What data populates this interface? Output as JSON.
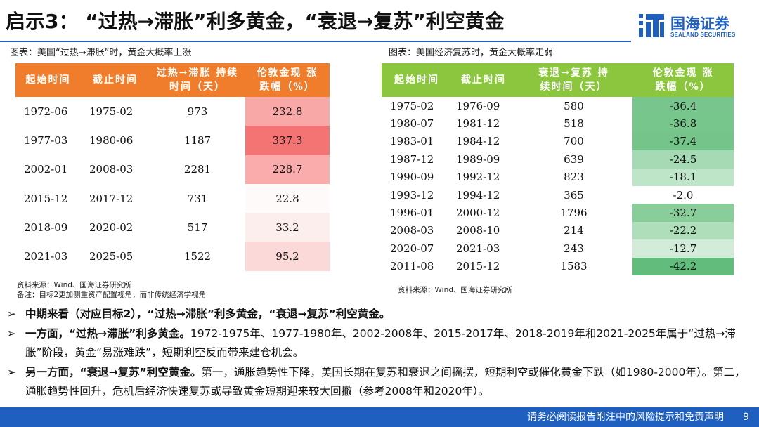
{
  "title": "启示3：  “过热→滞胀”利多黄金，“衰退→复苏”利空黄金",
  "logo": {
    "cn": "国海证券",
    "en": "SEALAND SECURITIES",
    "icon": "sealand-logo-icon",
    "color": "#1f5fbf"
  },
  "left": {
    "caption": "图表：美国“过热→滞胀”时，黄金大概率上涨",
    "headers": [
      "起始时间",
      "截止时间",
      "过热→滞胀 持续时间（天）",
      "伦敦金现 涨跌幅（%）"
    ],
    "header_color": "#ef7d2b",
    "rows": [
      {
        "start": "1972-06",
        "end": "1975-02",
        "days": "973",
        "change": "232.8",
        "color": "#f9a8a8"
      },
      {
        "start": "1977-03",
        "end": "1980-06",
        "days": "1187",
        "change": "337.3",
        "color": "#f47474"
      },
      {
        "start": "2002-01",
        "end": "2008-03",
        "days": "2281",
        "change": "228.7",
        "color": "#faacac"
      },
      {
        "start": "2015-12",
        "end": "2017-12",
        "days": "731",
        "change": "22.8",
        "color": "#fffafa"
      },
      {
        "start": "2018-09",
        "end": "2020-02",
        "days": "517",
        "change": "33.2",
        "color": "#fdeeee"
      },
      {
        "start": "2021-03",
        "end": "2025-05",
        "days": "1522",
        "change": "95.2",
        "color": "#fbd9d9"
      }
    ],
    "source": "资料来源：Wind、国海证券研究所",
    "note": "备注：目标2更加侧重资产配置视角，而非传统经济学视角"
  },
  "right": {
    "caption": "图表：美国经济复苏时，黄金大概率走弱",
    "headers": [
      "起始时间",
      "截止时间",
      "衰退→复苏 持续时间（天）",
      "伦敦金现 涨跌幅（%）"
    ],
    "header_color": "#8cc63f",
    "rows": [
      {
        "start": "1975-02",
        "end": "1976-09",
        "days": "580",
        "change": "-36.4",
        "color": "#78c68d"
      },
      {
        "start": "1980-07",
        "end": "1981-12",
        "days": "518",
        "change": "-36.8",
        "color": "#77c68c"
      },
      {
        "start": "1983-01",
        "end": "1984-12",
        "days": "700",
        "change": "-37.4",
        "color": "#75c58b"
      },
      {
        "start": "1987-12",
        "end": "1989-09",
        "days": "639",
        "change": "-24.5",
        "color": "#a6dab4"
      },
      {
        "start": "1990-09",
        "end": "1992-12",
        "days": "823",
        "change": "-18.1",
        "color": "#bfe5c9"
      },
      {
        "start": "1993-12",
        "end": "1994-12",
        "days": "365",
        "change": "-2.0",
        "color": "#ffffff"
      },
      {
        "start": "1996-01",
        "end": "2000-12",
        "days": "1796",
        "change": "-32.7",
        "color": "#88cd9a"
      },
      {
        "start": "2008-03",
        "end": "2008-10",
        "days": "214",
        "change": "-22.2",
        "color": "#afdebb"
      },
      {
        "start": "2020-07",
        "end": "2021-03",
        "days": "243",
        "change": "-12.7",
        "color": "#d3ecd9"
      },
      {
        "start": "2011-08",
        "end": "2015-12",
        "days": "1583",
        "change": "-42.2",
        "color": "#62bc7b"
      }
    ],
    "source": "资料来源：Wind、国海证券研究所"
  },
  "bullets": [
    {
      "bold": "中期来看（对应目标2），“过热→滞胀”利多黄金，“衰退→复苏”利空黄金。",
      "text": ""
    },
    {
      "bold": "一方面，“过热→滞胀”利多黄金。",
      "text": "1972-1975年、1977-1980年、2002-2008年、2015-2017年、2018-2019年和2021-2025年属于“过热→滞胀”阶段，黄金“易涨难跌”，短期利空反而带来建仓机会。"
    },
    {
      "bold": "另一方面，“衰退→复苏”利空黄金。",
      "text": "第一，通胀趋势性下降，美国长期在复苏和衰退之间摇摆，短期利空或催化黄金下跌（如1980-2000年）。第二，通胀趋势性回升，危机后经济快速复苏或导致黄金短期迎来较大回撤（参考2008年和2020年）。"
    }
  ],
  "bullet_icon": "arrow-right-icon",
  "footer": {
    "disclaimer": "请务必阅读报告附注中的风险提示和免责声明",
    "page": "9",
    "color": "#1f5fbf"
  }
}
